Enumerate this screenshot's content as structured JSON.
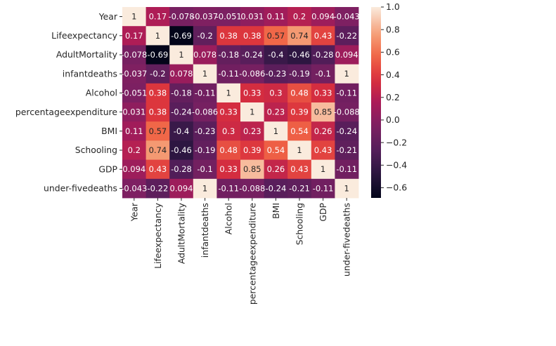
{
  "chart_data": {
    "type": "heatmap",
    "title": "",
    "xlabel": "",
    "ylabel": "",
    "rows": [
      "Year",
      "Lifeexpectancy",
      "AdultMortality",
      "infantdeaths",
      "Alcohol",
      "percentageexpenditure",
      "BMI",
      "Schooling",
      "GDP",
      "under-fivedeaths"
    ],
    "cols": [
      "Year",
      "Lifeexpectancy",
      "AdultMortality",
      "infantdeaths",
      "Alcohol",
      "percentageexpenditure",
      "BMI",
      "Schooling",
      "GDP",
      "under-fivedeaths"
    ],
    "values": [
      [
        1,
        0.17,
        -0.078,
        -0.037,
        -0.051,
        0.031,
        0.11,
        0.2,
        0.094,
        -0.043
      ],
      [
        0.17,
        1,
        -0.69,
        -0.2,
        0.38,
        0.38,
        0.57,
        0.74,
        0.43,
        -0.22
      ],
      [
        -0.078,
        -0.69,
        1,
        0.078,
        -0.18,
        -0.24,
        -0.4,
        -0.46,
        -0.28,
        0.094
      ],
      [
        -0.037,
        -0.2,
        0.078,
        1,
        -0.11,
        -0.086,
        -0.23,
        -0.19,
        -0.1,
        1
      ],
      [
        -0.051,
        0.38,
        -0.18,
        -0.11,
        1,
        0.33,
        0.3,
        0.48,
        0.33,
        -0.11
      ],
      [
        0.031,
        0.38,
        -0.24,
        -0.086,
        0.33,
        1,
        0.23,
        0.39,
        0.85,
        -0.088
      ],
      [
        0.11,
        0.57,
        -0.4,
        -0.23,
        0.3,
        0.23,
        1,
        0.54,
        0.26,
        -0.24
      ],
      [
        0.2,
        0.74,
        -0.46,
        -0.19,
        0.48,
        0.39,
        0.54,
        1,
        0.43,
        -0.21
      ],
      [
        0.094,
        0.43,
        -0.28,
        -0.1,
        0.33,
        0.85,
        0.26,
        0.43,
        1,
        -0.11
      ],
      [
        -0.043,
        -0.22,
        0.094,
        1,
        -0.11,
        -0.088,
        -0.24,
        -0.21,
        -0.11,
        1
      ]
    ],
    "labels": [
      [
        "1",
        "0.17",
        "-0.078",
        "-0.037",
        "-0.051",
        "0.031",
        "0.11",
        "0.2",
        "0.094",
        "-0.043"
      ],
      [
        "0.17",
        "1",
        "-0.69",
        "-0.2",
        "0.38",
        "0.38",
        "0.57",
        "0.74",
        "0.43",
        "-0.22"
      ],
      [
        "-0.078",
        "-0.69",
        "1",
        "0.078",
        "-0.18",
        "-0.24",
        "-0.4",
        "-0.46",
        "-0.28",
        "0.094"
      ],
      [
        "-0.037",
        "-0.2",
        "0.078",
        "1",
        "-0.11",
        "-0.086",
        "-0.23",
        "-0.19",
        "-0.1",
        "1"
      ],
      [
        "-0.051",
        "0.38",
        "-0.18",
        "-0.11",
        "1",
        "0.33",
        "0.3",
        "0.48",
        "0.33",
        "-0.11"
      ],
      [
        "0.031",
        "0.38",
        "-0.24",
        "-0.086",
        "0.33",
        "1",
        "0.23",
        "0.39",
        "0.85",
        "-0.088"
      ],
      [
        "0.11",
        "0.57",
        "-0.4",
        "-0.23",
        "0.3",
        "0.23",
        "1",
        "0.54",
        "0.26",
        "-0.24"
      ],
      [
        "0.2",
        "0.74",
        "-0.46",
        "-0.19",
        "0.48",
        "0.39",
        "0.54",
        "1",
        "0.43",
        "-0.21"
      ],
      [
        "0.094",
        "0.43",
        "-0.28",
        "-0.1",
        "0.33",
        "0.85",
        "0.26",
        "0.43",
        "1",
        "-0.11"
      ],
      [
        "-0.043",
        "-0.22",
        "0.094",
        "1",
        "-0.11",
        "-0.088",
        "-0.24",
        "-0.21",
        "-0.11",
        "1"
      ]
    ],
    "colorbar": {
      "min": -0.69,
      "max": 1.0,
      "ticks": [
        1.0,
        0.8,
        0.6,
        0.4,
        0.2,
        0.0,
        -0.2,
        -0.4,
        -0.6
      ],
      "tick_labels": [
        "1.0",
        "0.8",
        "0.6",
        "0.4",
        "0.2",
        "0.0",
        "−0.2",
        "−0.4",
        "−0.6"
      ]
    },
    "colormap": "rocket",
    "grid": false
  }
}
